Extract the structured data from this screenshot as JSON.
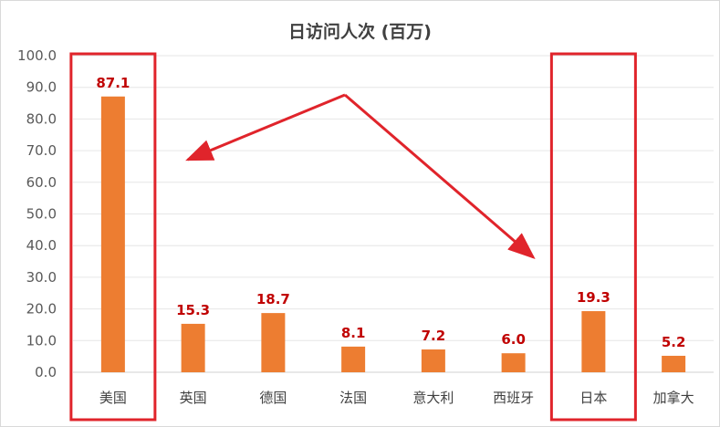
{
  "chart_data": {
    "type": "bar",
    "title": "日访问人次 (百万)",
    "categories": [
      "美国",
      "英国",
      "德国",
      "法国",
      "意大利",
      "西班牙",
      "日本",
      "加拿大"
    ],
    "values": [
      87.1,
      15.3,
      18.7,
      8.1,
      7.2,
      6.0,
      19.3,
      5.2
    ],
    "value_labels": [
      "87.1",
      "15.3",
      "18.7",
      "8.1",
      "7.2",
      "6.0",
      "19.3",
      "5.2"
    ],
    "ylim": [
      0,
      100
    ],
    "yticks": [
      "0.0",
      "10.0",
      "20.0",
      "30.0",
      "40.0",
      "50.0",
      "60.0",
      "70.0",
      "80.0",
      "90.0",
      "100.0"
    ],
    "grid": true,
    "legend": "none",
    "highlighted_categories": [
      "美国",
      "日本"
    ],
    "colors": {
      "bar": "#ed7d31",
      "highlight_box": "#e0242b",
      "arrow": "#e0242b",
      "data_label": "#c00000",
      "grid": "#e6e6e6"
    }
  }
}
